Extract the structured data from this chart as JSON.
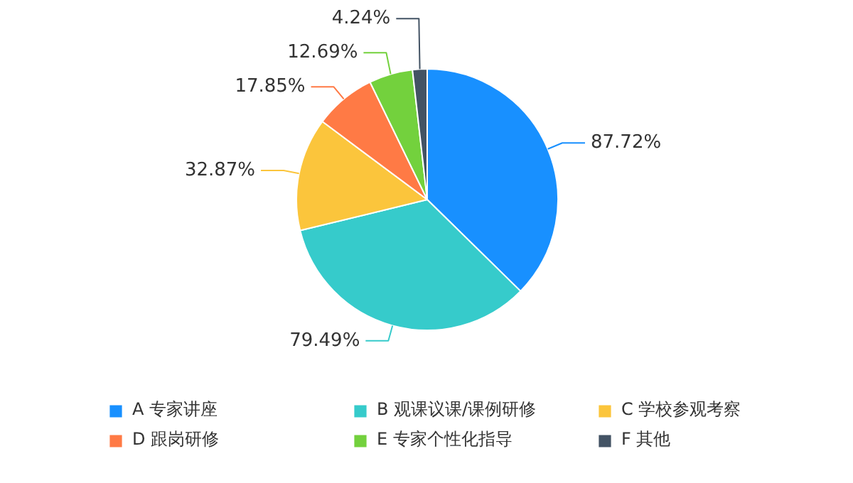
{
  "chart_data": {
    "type": "pie",
    "categories": [
      "A 专家讲座",
      "B 观课议课/课例研修",
      "C 学校参观考察",
      "D 跟岗研修",
      "E 专家个性化指导",
      "F 其他"
    ],
    "values": [
      87.72,
      79.49,
      32.87,
      17.85,
      12.69,
      4.24
    ],
    "value_labels": [
      "87.72%",
      "79.49%",
      "32.87%",
      "17.85%",
      "12.69%",
      "4.24%"
    ],
    "colors": [
      "#1890ff",
      "#36cbcb",
      "#fbc53c",
      "#ff7a45",
      "#73d13d",
      "#435364"
    ],
    "legend": "bottom"
  }
}
